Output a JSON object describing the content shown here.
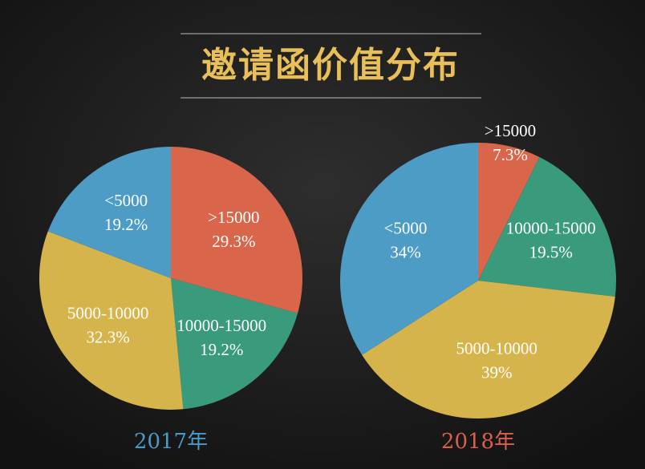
{
  "title": "邀请函价值分布",
  "chart_data": [
    {
      "type": "pie",
      "title": "2017年",
      "title_color": "#4a9ac8",
      "categories": [
        ">15000",
        "10000-15000",
        "5000-10000",
        "<5000"
      ],
      "values": [
        29.3,
        19.2,
        32.3,
        19.2
      ],
      "value_labels": [
        "29.3%",
        "19.2%",
        "32.3%",
        "19.2%"
      ],
      "colors": [
        "#d9664a",
        "#3a9a7c",
        "#d6b44c",
        "#4c9cc6"
      ]
    },
    {
      "type": "pie",
      "title": "2018年",
      "title_color": "#d9604c",
      "categories": [
        ">15000",
        "10000-15000",
        "5000-10000",
        "<5000"
      ],
      "values": [
        7.3,
        19.5,
        39,
        34
      ],
      "value_labels": [
        "7.3%",
        "19.5%",
        "39%",
        "34%"
      ],
      "colors": [
        "#d9664a",
        "#3a9a7c",
        "#d6b44c",
        "#4c9cc6"
      ]
    }
  ]
}
